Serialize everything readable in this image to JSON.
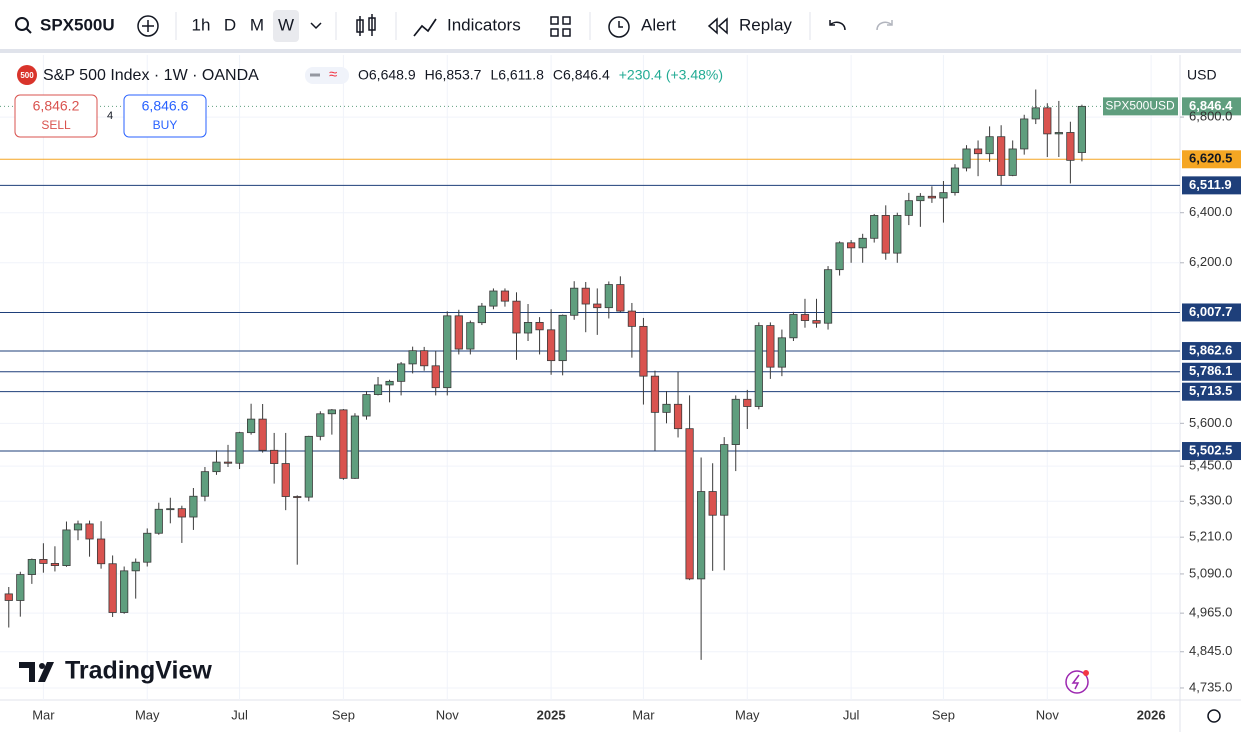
{
  "toolbar": {
    "symbol": "SPX500U",
    "intervals": [
      "1h",
      "D",
      "M",
      "W"
    ],
    "indicators": "Indicators",
    "alert": "Alert",
    "replay": "Replay"
  },
  "trade": {
    "sell_price": "6,846.2",
    "sell": "SELL",
    "spread": "4",
    "buy_price": "6,846.6",
    "buy": "BUY"
  },
  "chart_data": {
    "type": "candlestick",
    "title": "S&P 500 Index · 1W · OANDA",
    "badge": "500",
    "ohlc_text": [
      "O6,648.9",
      "H6,853.7",
      "L6,611.8",
      "C6,846.4",
      "+230.4 (+3.48%)"
    ],
    "currency": "USD",
    "watermark": "TradingView",
    "categories": [
      null,
      null,
      null,
      "Mar",
      null,
      null,
      null,
      null,
      null,
      null,
      null,
      null,
      "May",
      null,
      null,
      null,
      null,
      null,
      null,
      null,
      "Jul",
      null,
      null,
      null,
      null,
      null,
      null,
      null,
      null,
      "Sep",
      null,
      null,
      null,
      null,
      null,
      null,
      null,
      null,
      "Nov",
      null,
      null,
      null,
      null,
      null,
      null,
      null,
      null,
      "2025",
      null,
      null,
      null,
      null,
      null,
      null,
      null,
      "Mar",
      null,
      null,
      null,
      null,
      null,
      null,
      null,
      null,
      "May",
      null,
      null,
      null,
      null,
      null,
      null,
      null,
      null,
      "Jul",
      null,
      null,
      null,
      null,
      null,
      null,
      null,
      "Sep",
      null,
      null,
      null,
      null,
      null,
      null,
      null,
      null,
      "Nov",
      null,
      null,
      null,
      null,
      null,
      null,
      null,
      null,
      "2026",
      null,
      null
    ],
    "series": [
      {
        "name": "SPX500USD",
        "up_color": "#5f9e7e",
        "down_color": "#d9534f",
        "open": [
          5026,
          5005,
          5088,
          5137,
          5124,
          5117,
          5234,
          5254,
          5204,
          5123,
          4967,
          5100,
          5128,
          5223,
          5303,
          5305,
          5277,
          5347,
          5431,
          5464,
          5460,
          5567,
          5615,
          5505,
          5459,
          5346,
          5344,
          5554,
          5634,
          5648,
          5408,
          5626,
          5703,
          5738,
          5751,
          5815,
          5864,
          5808,
          5728,
          5995,
          5870,
          5969,
          6032,
          6090,
          6051,
          5930,
          5970,
          5942,
          5827,
          5997,
          6101,
          6040,
          6026,
          6115,
          6013,
          5955,
          5770,
          5639,
          5668,
          5581,
          5074,
          5363,
          5283,
          5525,
          5686,
          5660,
          5958,
          5803,
          5912,
          6000,
          5977,
          5967,
          6173,
          6279,
          6259,
          6297,
          6389,
          6238,
          6389,
          6449,
          6467,
          6460,
          6482,
          6584,
          6664,
          6644,
          6716,
          6553,
          6664,
          6792,
          6840,
          6728,
          6734,
          6648.9,
          null,
          null,
          null,
          null,
          null,
          null,
          null,
          null
        ],
        "high": [
          5048,
          5097,
          5140,
          5190,
          5180,
          5262,
          5265,
          5265,
          5263,
          5150,
          5114,
          5140,
          5239,
          5325,
          5342,
          5315,
          5375,
          5447,
          5505,
          5524,
          5570,
          5670,
          5669,
          5566,
          5566,
          5350,
          5556,
          5643,
          5651,
          5651,
          5636,
          5716,
          5767,
          5757,
          5822,
          5879,
          5878,
          5863,
          6012,
          6018,
          5977,
          6044,
          6100,
          6100,
          6085,
          6040,
          5990,
          6020,
          6000,
          6128,
          6125,
          6100,
          6127,
          6147,
          6044,
          5987,
          5790,
          5716,
          5786,
          5700,
          5480,
          5460,
          5551,
          5700,
          5720,
          5970,
          5970,
          5943,
          6010,
          6060,
          6060,
          6187,
          6285,
          6290,
          6315,
          6395,
          6430,
          6400,
          6481,
          6480,
          6508,
          6530,
          6600,
          6680,
          6700,
          6760,
          6765,
          6700,
          6810,
          6920,
          6860,
          6870,
          6780,
          6853.7,
          null,
          null,
          null,
          null,
          null,
          null,
          null,
          null
        ],
        "low": [
          4920,
          4954,
          5058,
          5094,
          5098,
          5113,
          5200,
          5146,
          5107,
          4953,
          4963,
          5011,
          5114,
          5218,
          5256,
          5191,
          5234,
          5330,
          5420,
          5447,
          5440,
          5560,
          5497,
          5390,
          5300,
          5120,
          5330,
          5540,
          5560,
          5403,
          5406,
          5613,
          5700,
          5675,
          5700,
          5780,
          5790,
          5700,
          5700,
          5850,
          5850,
          5960,
          6020,
          6030,
          5830,
          5900,
          5850,
          5775,
          5773,
          5980,
          5933,
          5923,
          5985,
          6008,
          5838,
          5667,
          5504,
          5600,
          5550,
          5070,
          4820,
          5100,
          5102,
          5433,
          5580,
          5650,
          5760,
          5770,
          5900,
          5950,
          5950,
          5943,
          6150,
          6200,
          6200,
          6280,
          6212,
          6200,
          6350,
          6343,
          6440,
          6360,
          6470,
          6570,
          6550,
          6610,
          6511,
          6550,
          6640,
          6770,
          6630,
          6630,
          6520,
          6611.8,
          null,
          null,
          null,
          null,
          null,
          null,
          null,
          null
        ],
        "close": [
          5005,
          5088,
          5137,
          5124,
          5117,
          5234,
          5254,
          5204,
          5123,
          4967,
          5100,
          5128,
          5223,
          5303,
          5305,
          5277,
          5347,
          5431,
          5464,
          5460,
          5567,
          5615,
          5505,
          5459,
          5346,
          5344,
          5554,
          5634,
          5648,
          5408,
          5626,
          5703,
          5738,
          5751,
          5815,
          5864,
          5808,
          5728,
          5995,
          5870,
          5969,
          6032,
          6090,
          6051,
          5930,
          5970,
          5942,
          5827,
          5997,
          6101,
          6040,
          6026,
          6115,
          6013,
          5955,
          5770,
          5639,
          5668,
          5581,
          5074,
          5363,
          5283,
          5525,
          5686,
          5660,
          5958,
          5803,
          5912,
          6000,
          5977,
          5967,
          6173,
          6279,
          6259,
          6297,
          6389,
          6238,
          6389,
          6449,
          6467,
          6460,
          6482,
          6584,
          6664,
          6644,
          6716,
          6553,
          6664,
          6792,
          6840,
          6728,
          6734,
          6616,
          6846.4,
          null,
          null,
          null,
          null,
          null,
          null,
          null,
          null
        ]
      }
    ],
    "last_price": {
      "value": 6846.4,
      "label": "6,846.4",
      "color": "#5f9e7e"
    },
    "levels": {
      "values": [
        6620.5,
        6511.9,
        6007.7,
        5862.6,
        5786.1,
        5713.5,
        5502.5
      ],
      "value_labels": [
        "6,620.5",
        "6,511.9",
        "6,007.7",
        "5,862.6",
        "5,786.1",
        "5,713.5",
        "5,502.5"
      ],
      "colors": [
        "#f5a623",
        "#1e3f7a",
        "#1e3f7a",
        "#1e3f7a",
        "#1e3f7a",
        "#1e3f7a",
        "#1e3f7a"
      ]
    },
    "ylim": [
      4699,
      7073
    ],
    "log_scale": true,
    "yticks": [
      {
        "value": 6800,
        "label": "6,800.0"
      },
      {
        "value": 6400,
        "label": "6,400.0"
      },
      {
        "value": 6200,
        "label": "6,200.0"
      },
      {
        "value": 5600,
        "label": "5,600.0"
      },
      {
        "value": 5450,
        "label": "5,450.0"
      },
      {
        "value": 5330,
        "label": "5,330.0"
      },
      {
        "value": 5210,
        "label": "5,210.0"
      },
      {
        "value": 5090,
        "label": "5,090.0"
      },
      {
        "value": 4965,
        "label": "4,965.0"
      },
      {
        "value": 4845,
        "label": "4,845.0"
      },
      {
        "value": 4735,
        "label": "4,735.0"
      }
    ],
    "grid": true
  }
}
